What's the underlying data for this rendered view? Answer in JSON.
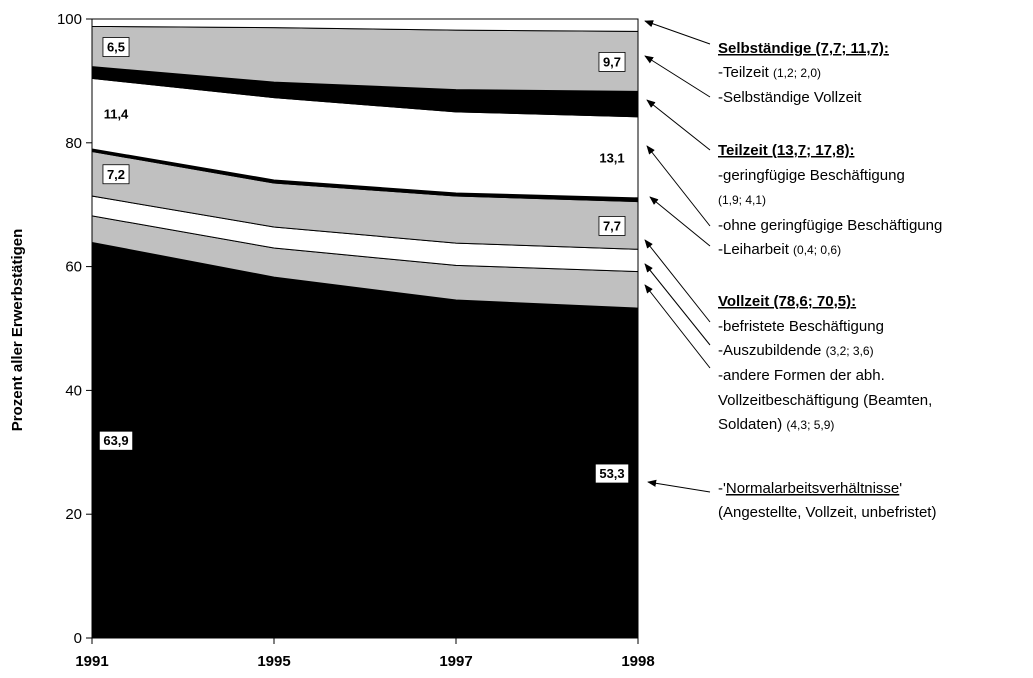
{
  "chart_data": {
    "type": "stacked_area",
    "y_label": "Prozent aller Erwerbstätigen",
    "categories": [
      "1991",
      "1995",
      "1997",
      "1998"
    ],
    "ylim": [
      0,
      100
    ],
    "yticks": [
      0,
      20,
      40,
      60,
      80,
      100
    ],
    "series": [
      {
        "name": "Normalarbeitsverhältnisse",
        "color": "#000000",
        "values": [
          63.9,
          58.3,
          54.6,
          53.3
        ],
        "value_labels": [
          "63,9",
          null,
          null,
          "53,3"
        ]
      },
      {
        "name": "andere Formen der abh. Vollzeitbeschäftigung",
        "color": "#c0c0c0",
        "values": [
          4.3,
          4.7,
          5.6,
          5.9
        ]
      },
      {
        "name": "Auszubildende",
        "color": "#ffffff",
        "values": [
          3.2,
          3.4,
          3.6,
          3.6
        ]
      },
      {
        "name": "befristete Beschäftigung",
        "color": "#c0c0c0",
        "values": [
          7.2,
          7.1,
          7.6,
          7.7
        ],
        "value_labels": [
          "7,2",
          null,
          null,
          "7,7"
        ]
      },
      {
        "name": "Leiharbeit",
        "color": "#000000",
        "values": [
          0.4,
          0.5,
          0.5,
          0.6
        ]
      },
      {
        "name": "ohne geringfügige Beschäftigung",
        "color": "#ffffff",
        "values": [
          11.4,
          13.3,
          13.1,
          13.1
        ],
        "value_labels": [
          "11,4",
          null,
          null,
          "13,1"
        ]
      },
      {
        "name": "geringfügige Beschäftigung",
        "color": "#000000",
        "values": [
          1.9,
          2.5,
          3.6,
          4.1
        ]
      },
      {
        "name": "Selbständige Vollzeit",
        "color": "#c0c0c0",
        "values": [
          6.5,
          8.8,
          9.6,
          9.7
        ],
        "value_labels": [
          "6,5",
          null,
          null,
          "9,7"
        ]
      },
      {
        "name": "Teilzeit Selbständige",
        "color": "#ffffff",
        "values": [
          1.2,
          1.4,
          1.8,
          2.0
        ]
      }
    ],
    "annotations": [
      [
        {
          "text": "Selbständige (7,7; 11,7):",
          "style": "heading"
        }
      ],
      [
        {
          "text": "-Teilzeit ",
          "style": "normal"
        },
        {
          "text": "(1,2; 2,0)",
          "style": "small"
        }
      ],
      [
        {
          "text": "-Selbständige Vollzeit",
          "style": "normal"
        }
      ],
      [
        {
          "text": "Teilzeit (13,7; 17,8):",
          "style": "heading"
        }
      ],
      [
        {
          "text": "-geringfügige Beschäftigung",
          "style": "normal"
        }
      ],
      [
        {
          "text": "(1,9; 4,1)",
          "style": "small"
        }
      ],
      [
        {
          "text": "-ohne geringfügige Beschäftigung",
          "style": "normal"
        }
      ],
      [
        {
          "text": "-Leiharbeit ",
          "style": "normal"
        },
        {
          "text": "(0,4; 0,6)",
          "style": "small"
        }
      ],
      [
        {
          "text": "Vollzeit (78,6; 70,5):",
          "style": "heading"
        }
      ],
      [
        {
          "text": "-befristete Beschäftigung",
          "style": "normal"
        }
      ],
      [
        {
          "text": "-Auszubildende ",
          "style": "normal"
        },
        {
          "text": "(3,2; 3,6)",
          "style": "small"
        }
      ],
      [
        {
          "text": "-andere Formen der abh.",
          "style": "normal"
        }
      ],
      [
        {
          "text": "Vollzeitbeschäftigung (Beamten,",
          "style": "normal"
        }
      ],
      [
        {
          "text": "Soldaten) ",
          "style": "normal"
        },
        {
          "text": "(4,3; 5,9)",
          "style": "small"
        }
      ],
      [
        {
          "text": "-'",
          "style": "normal"
        },
        {
          "text": "Normalarbeitsverhältnisse",
          "style": "underline"
        },
        {
          "text": "'",
          "style": "normal"
        }
      ],
      [
        {
          "text": "(Angestellte, Vollzeit, unbefristet)",
          "style": "normal"
        }
      ]
    ]
  }
}
